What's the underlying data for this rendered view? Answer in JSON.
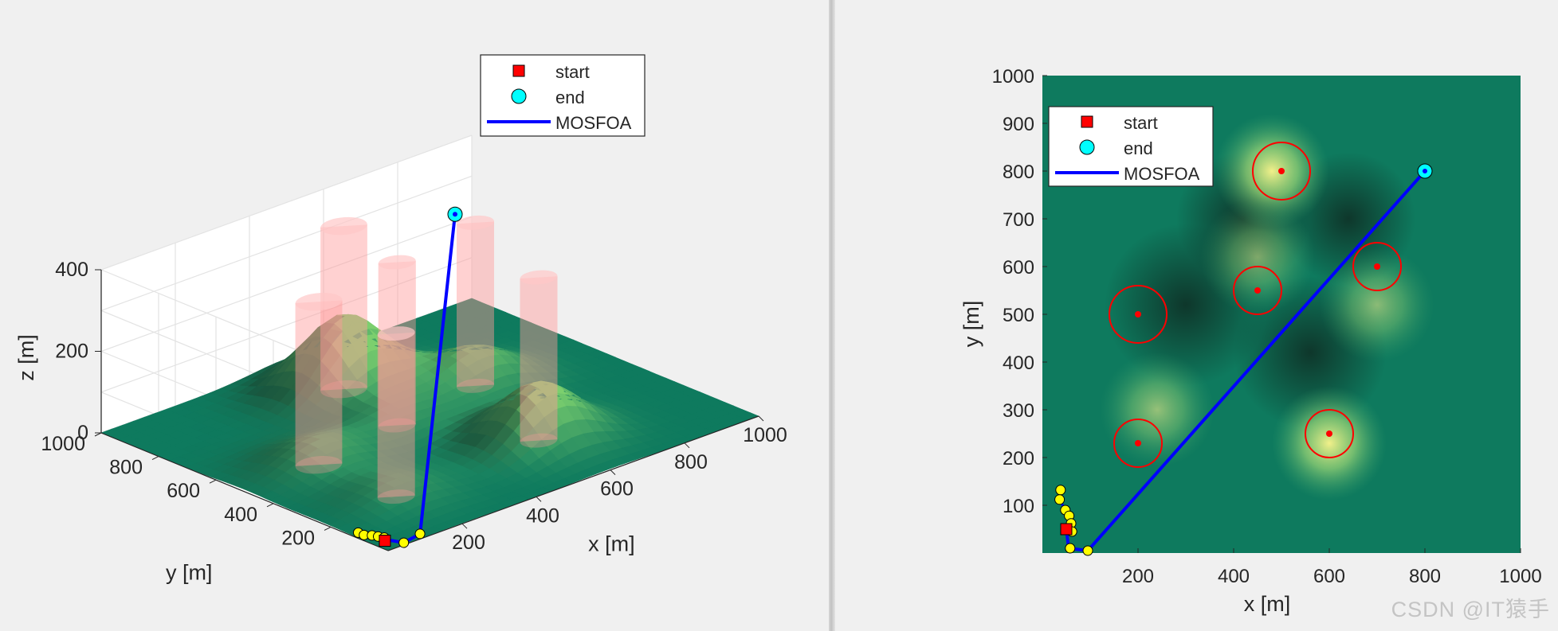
{
  "colors": {
    "start_marker": "#ff0000",
    "end_marker": "#00ffff",
    "path_line": "#0000ff",
    "waypoint": "#ffff00",
    "threat_circle": "#ff0000",
    "terrain_low": "#0e7a5e",
    "terrain_high": "#f2f08a",
    "obstacle_cylinder": "#ff9a9a"
  },
  "watermark": "CSDN @IT猿手",
  "chart_data": [
    {
      "type": "surface3d",
      "xlabel": "x [m]",
      "ylabel": "y [m]",
      "zlabel": "z [m]",
      "x_ticks": [
        "200",
        "400",
        "600",
        "800",
        "1000"
      ],
      "y_ticks": [
        "200",
        "400",
        "600",
        "800",
        "1000"
      ],
      "z_ticks": [
        "0",
        "200",
        "400"
      ],
      "xlim": [
        0,
        1000
      ],
      "ylim": [
        0,
        1000
      ],
      "zlim": [
        0,
        400
      ],
      "grid": true,
      "legend": {
        "placement": "top-right",
        "entries": [
          {
            "label": "start",
            "marker": "square"
          },
          {
            "label": "end",
            "marker": "circle"
          },
          {
            "label": "MOSFOA",
            "marker": "line"
          }
        ]
      },
      "terrain_peaks": [
        {
          "x": 500,
          "y": 800,
          "height": 180
        },
        {
          "x": 200,
          "y": 500,
          "height": 60
        },
        {
          "x": 450,
          "y": 550,
          "height": 45
        },
        {
          "x": 700,
          "y": 600,
          "height": 90
        },
        {
          "x": 200,
          "y": 230,
          "height": 40
        },
        {
          "x": 600,
          "y": 250,
          "height": 140
        }
      ],
      "obstacles": [
        {
          "x": 500,
          "y": 800,
          "radius": 50,
          "height": 400
        },
        {
          "x": 200,
          "y": 500,
          "radius": 50,
          "height": 400
        },
        {
          "x": 450,
          "y": 550,
          "radius": 40,
          "height": 400
        },
        {
          "x": 700,
          "y": 600,
          "radius": 40,
          "height": 400
        },
        {
          "x": 200,
          "y": 230,
          "radius": 40,
          "height": 400
        },
        {
          "x": 600,
          "y": 250,
          "radius": 40,
          "height": 400
        }
      ],
      "start": {
        "x": 30,
        "y": 50,
        "z": 0
      },
      "end": {
        "x": 800,
        "y": 800,
        "z": 330
      },
      "path": [
        {
          "x": 30,
          "y": 50,
          "z": 0
        },
        {
          "x": 40,
          "y": 40,
          "z": 0
        },
        {
          "x": 50,
          "y": 10,
          "z": 0
        },
        {
          "x": 90,
          "y": 5,
          "z": 10
        },
        {
          "x": 800,
          "y": 800,
          "z": 330
        }
      ],
      "waypoints": [
        {
          "x": 20,
          "y": 130,
          "z": 0
        },
        {
          "x": 20,
          "y": 110,
          "z": 0
        },
        {
          "x": 30,
          "y": 95,
          "z": 0
        },
        {
          "x": 35,
          "y": 80,
          "z": 0
        },
        {
          "x": 40,
          "y": 65,
          "z": 0
        },
        {
          "x": 50,
          "y": 10,
          "z": 0
        },
        {
          "x": 90,
          "y": 5,
          "z": 10
        }
      ]
    },
    {
      "type": "heatmap",
      "xlabel": "x [m]",
      "ylabel": "y [m]",
      "x_ticks": [
        "200",
        "400",
        "600",
        "800",
        "1000"
      ],
      "y_ticks": [
        "100",
        "200",
        "300",
        "400",
        "500",
        "600",
        "700",
        "800",
        "900",
        "1000"
      ],
      "xlim": [
        0,
        1000
      ],
      "ylim": [
        0,
        1000
      ],
      "legend": {
        "placement": "top-left",
        "entries": [
          {
            "label": "start",
            "marker": "square"
          },
          {
            "label": "end",
            "marker": "circle"
          },
          {
            "label": "MOSFOA",
            "marker": "line"
          }
        ]
      },
      "threats": [
        {
          "x": 500,
          "y": 800,
          "radius": 60
        },
        {
          "x": 200,
          "y": 500,
          "radius": 60
        },
        {
          "x": 450,
          "y": 550,
          "radius": 50
        },
        {
          "x": 700,
          "y": 600,
          "radius": 50
        },
        {
          "x": 200,
          "y": 230,
          "radius": 50
        },
        {
          "x": 600,
          "y": 250,
          "radius": 50
        }
      ],
      "bright_spots": [
        {
          "x": 480,
          "y": 800,
          "strength": 1.0
        },
        {
          "x": 600,
          "y": 230,
          "strength": 1.0
        },
        {
          "x": 700,
          "y": 520,
          "strength": 0.55
        },
        {
          "x": 240,
          "y": 300,
          "strength": 0.6
        },
        {
          "x": 450,
          "y": 620,
          "strength": 0.5
        }
      ],
      "start": {
        "x": 50,
        "y": 50
      },
      "end": {
        "x": 800,
        "y": 800
      },
      "path": [
        {
          "x": 50,
          "y": 50
        },
        {
          "x": 55,
          "y": 10
        },
        {
          "x": 95,
          "y": 5
        },
        {
          "x": 800,
          "y": 800
        }
      ],
      "waypoints": [
        {
          "x": 38,
          "y": 132
        },
        {
          "x": 36,
          "y": 112
        },
        {
          "x": 48,
          "y": 90
        },
        {
          "x": 56,
          "y": 78
        },
        {
          "x": 60,
          "y": 62
        },
        {
          "x": 62,
          "y": 45
        },
        {
          "x": 58,
          "y": 10
        },
        {
          "x": 95,
          "y": 5
        }
      ]
    }
  ]
}
